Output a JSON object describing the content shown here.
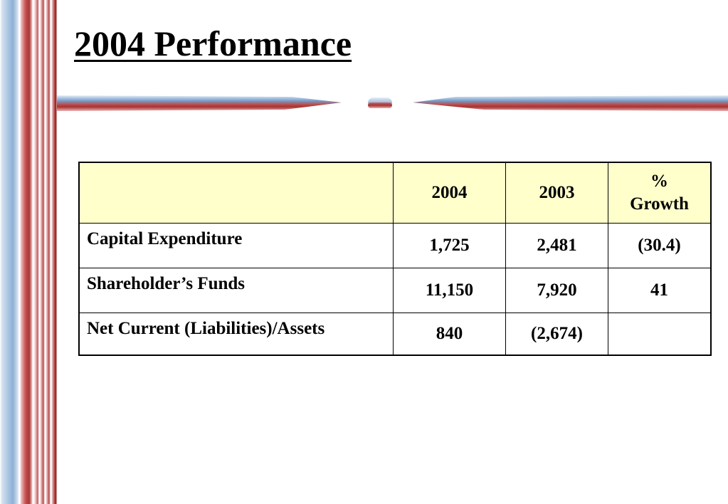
{
  "title": "2004 Performance",
  "table": {
    "headers": [
      "",
      "2004",
      "2003",
      "%",
      "Growth"
    ],
    "rows": [
      {
        "label": "Capital Expenditure",
        "v2004": "1,725",
        "v2003": "2,481",
        "growth": "(30.4)"
      },
      {
        "label": "Shareholder’s Funds",
        "v2004": "11,150",
        "v2003": "7,920",
        "growth": "41"
      },
      {
        "label": "Net Current (Liabilities)/Assets",
        "v2004": "840",
        "v2003": "(2,674)",
        "growth": ""
      }
    ]
  },
  "colors": {
    "header_fill": "#ffffcc",
    "stripe_blue": "#8eb0d4",
    "stripe_red": "#a93636"
  }
}
